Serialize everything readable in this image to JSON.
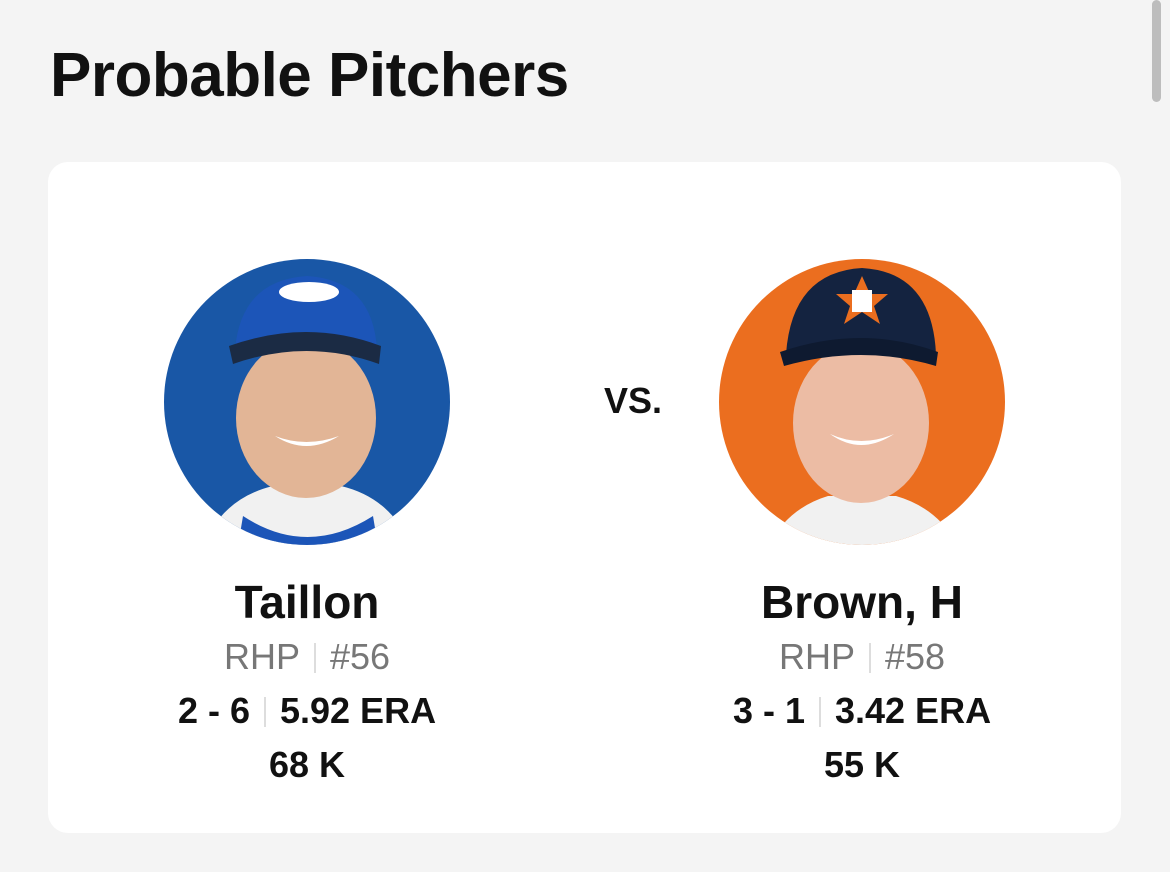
{
  "header": {
    "title": "Probable Pitchers"
  },
  "matchup": {
    "separator": "VS.",
    "pitchers": [
      {
        "name": "Taillon",
        "position": "RHP",
        "number": "#56",
        "record": "2 - 6",
        "era": "5.92 ERA",
        "strikeouts": "68 K"
      },
      {
        "name": "Brown, H",
        "position": "RHP",
        "number": "#58",
        "record": "3 - 1",
        "era": "3.42 ERA",
        "strikeouts": "55 K"
      }
    ]
  }
}
